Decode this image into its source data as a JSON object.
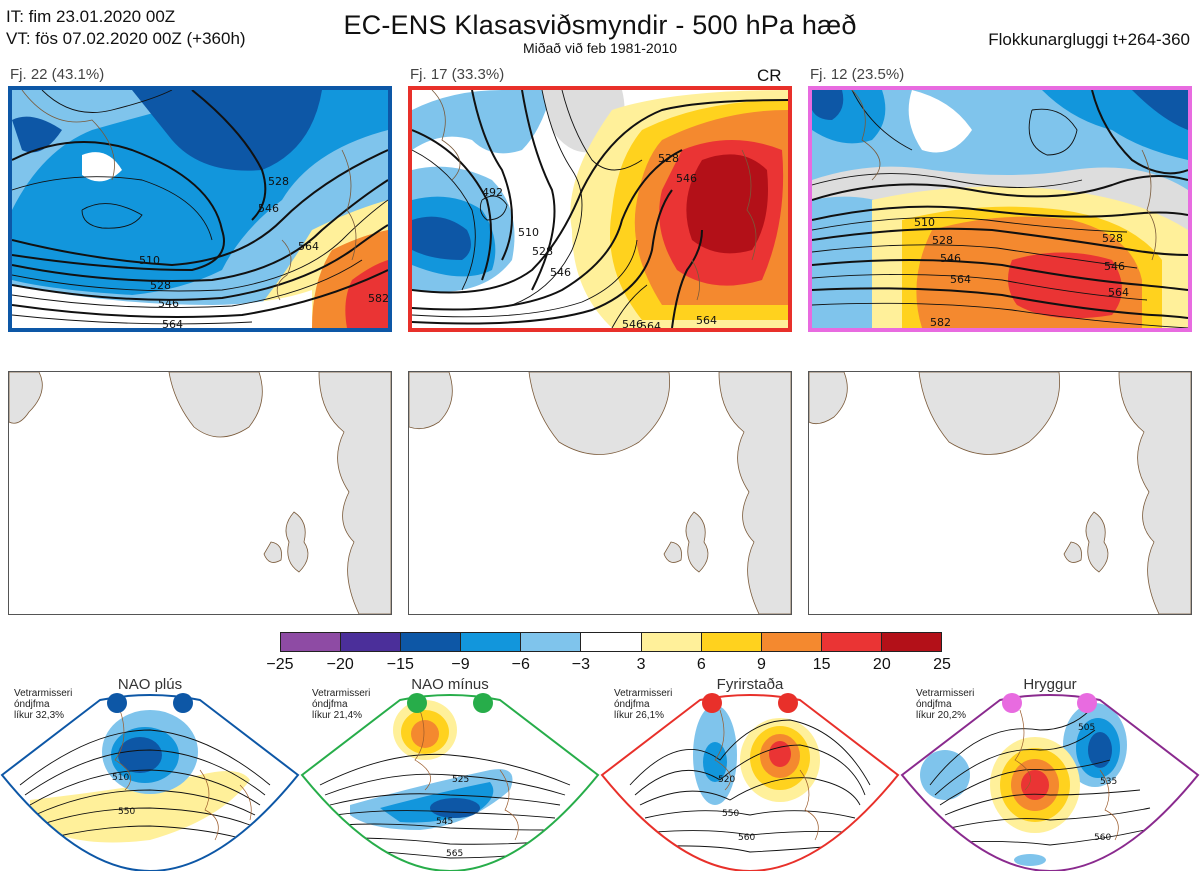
{
  "header": {
    "it_line": "IT: fim 23.01.2020 00Z",
    "vt_line": "VT: fös 07.02.2020 00Z  (+360h)",
    "title": "EC-ENS Klasasviðsmyndir - 500 hPa hæð",
    "subtitle": "Miðað við feb 1981-2010",
    "window": "Flokkunargluggi t+264-360"
  },
  "clusters": [
    {
      "label": "Fj. 22 (43.1%)",
      "border_color": "#0d57a6",
      "extra": "",
      "contour_labels": [
        "510",
        "528",
        "546",
        "564",
        "528",
        "546",
        "564",
        "582"
      ]
    },
    {
      "label": "Fj. 17 (33.3%)",
      "border_color": "#e8302a",
      "extra": "CR",
      "contour_labels": [
        "492",
        "510",
        "528",
        "546",
        "564",
        "546",
        "528",
        "546",
        "564"
      ]
    },
    {
      "label": "Fj. 12 (23.5%)",
      "border_color": "#e86be0",
      "extra": "",
      "contour_labels": [
        "510",
        "528",
        "546",
        "564",
        "582",
        "528",
        "546",
        "564"
      ]
    }
  ],
  "colorbar": {
    "ticks": [
      "−25",
      "−20",
      "−15",
      "−9",
      "−6",
      "−3",
      "3",
      "6",
      "9",
      "15",
      "20",
      "25"
    ],
    "colors": [
      "#8e4ba4",
      "#4b2f9a",
      "#0d57a6",
      "#1296dc",
      "#7fc4ec",
      "#ffffff",
      "#fff09a",
      "#ffd21e",
      "#f4892f",
      "#ea3434",
      "#b31018"
    ]
  },
  "regimes": [
    {
      "name": "NAO plús",
      "note": "Vetrarmisseri\nóndjfma\nlíkur 32,3%",
      "dot_color": "#0d57a6",
      "frame_color": "#0d57a6",
      "contour_labels": [
        "510",
        "550"
      ]
    },
    {
      "name": "NAO mínus",
      "note": "Vetrarmisseri\nóndjfma\nlíkur 21,4%",
      "dot_color": "#27ad4a",
      "frame_color": "#27ad4a",
      "contour_labels": [
        "525",
        "545",
        "565"
      ]
    },
    {
      "name": "Fyrirstaða",
      "note": "Vetrarmisseri\nóndjfma\nlíkur 26,1%",
      "dot_color": "#e8302a",
      "frame_color": "#e8302a",
      "contour_labels": [
        "520",
        "550",
        "560"
      ]
    },
    {
      "name": "Hryggur",
      "note": "Vetrarmisseri\nóndjfma\nlíkur 20,2%",
      "dot_color": "#e86be0",
      "frame_color": "#8a2a8e",
      "contour_labels": [
        "505",
        "535",
        "560"
      ]
    }
  ]
}
